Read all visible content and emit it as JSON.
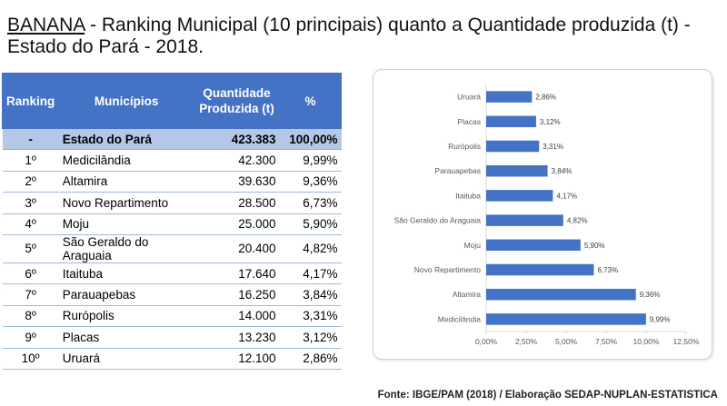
{
  "title": {
    "crop": "BANANA",
    "rest": " - Ranking Municipal (10 principais) quanto a Quantidade produzida (t) - Estado do Pará - 2018."
  },
  "table": {
    "headers": {
      "ranking": "Ranking",
      "municipios": "Municípios",
      "quantidade": "Quantidade Produzida (t)",
      "percent": "%"
    },
    "state_row": {
      "rank": "-",
      "name": "Estado do Pará",
      "qty": "423.383",
      "pct": "100,00%"
    },
    "rows": [
      {
        "rank": "1º",
        "name": "Medicilândia",
        "qty": "42.300",
        "pct": "9,99%"
      },
      {
        "rank": "2º",
        "name": "Altamira",
        "qty": "39.630",
        "pct": "9,36%"
      },
      {
        "rank": "3º",
        "name": "Novo Repartimento",
        "qty": "28.500",
        "pct": "6,73%"
      },
      {
        "rank": "4º",
        "name": "Moju",
        "qty": "25.000",
        "pct": "5,90%"
      },
      {
        "rank": "5º",
        "name": "São Geraldo do Araguaia",
        "qty": "20.400",
        "pct": "4,82%"
      },
      {
        "rank": "6º",
        "name": "Itaituba",
        "qty": "17.640",
        "pct": "4,17%"
      },
      {
        "rank": "7º",
        "name": "Parauapebas",
        "qty": "16.250",
        "pct": "3,84%"
      },
      {
        "rank": "8º",
        "name": "Rurópolis",
        "qty": "14.000",
        "pct": "3,31%"
      },
      {
        "rank": "9º",
        "name": "Placas",
        "qty": "13.230",
        "pct": "3,12%"
      },
      {
        "rank": "10º",
        "name": "Uruará",
        "qty": "12.100",
        "pct": "2,86%"
      }
    ]
  },
  "chart_data": {
    "type": "bar",
    "orientation": "horizontal",
    "categories": [
      "Uruará",
      "Placas",
      "Rurópolis",
      "Parauapebas",
      "Itaituba",
      "São Geraldo do Araguaia",
      "Moju",
      "Novo Repartimento",
      "Altamira",
      "Medicilândia"
    ],
    "values": [
      2.86,
      3.12,
      3.31,
      3.84,
      4.17,
      4.82,
      5.9,
      6.73,
      9.36,
      9.99
    ],
    "value_labels": [
      "2,86%",
      "3,12%",
      "3,31%",
      "3,84%",
      "4,17%",
      "4,82%",
      "5,90%",
      "6,73%",
      "9,36%",
      "9,99%"
    ],
    "xlim": [
      0,
      12.5
    ],
    "xticks": [
      0,
      2.5,
      5,
      7.5,
      10,
      12.5
    ],
    "xtick_labels": [
      "0,00%",
      "2,50%",
      "5,00%",
      "7,50%",
      "10,00%",
      "12,50%"
    ],
    "bar_color": "#4472c4",
    "grid": false,
    "legend": "none"
  },
  "source": "Fonte: IBGE/PAM (2018) / Elaboração SEDAP-NUPLAN-ESTATISTICA"
}
